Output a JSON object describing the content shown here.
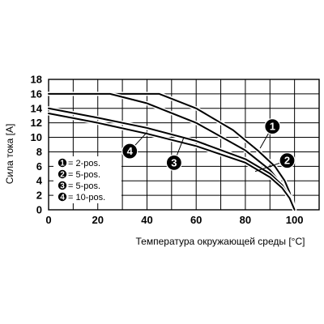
{
  "chart_data": {
    "type": "line",
    "title": "",
    "xlabel": "Температура окружающей среды [°C]",
    "ylabel": "Сила тока [A]",
    "xlim": [
      0,
      110
    ],
    "ylim": [
      0,
      18
    ],
    "x_ticks": [
      0,
      20,
      40,
      60,
      80,
      100
    ],
    "y_ticks": [
      0,
      2,
      4,
      6,
      8,
      10,
      12,
      14,
      16,
      18
    ],
    "x_tick_labels": [
      "0",
      "20",
      "40",
      "60",
      "80",
      "100"
    ],
    "y_tick_labels": [
      "0",
      "2",
      "4",
      "6",
      "8",
      "10",
      "12",
      "14",
      "16",
      "18"
    ],
    "grid": true,
    "legend_position": "inside-left",
    "series": [
      {
        "name": "2-pos.",
        "marker": "1",
        "color": "#000000",
        "x": [
          0,
          20,
          45,
          60,
          75,
          85,
          92,
          96,
          98,
          100
        ],
        "y": [
          16,
          16,
          16,
          14,
          11,
          8.2,
          6,
          4,
          2.4,
          0
        ]
      },
      {
        "name": "5-pos.",
        "marker": "2",
        "color": "#000000",
        "x": [
          0,
          25,
          40,
          60,
          80,
          90,
          95,
          98,
          100
        ],
        "y": [
          16,
          16,
          14.7,
          12,
          8.2,
          5.5,
          3.4,
          1.8,
          0
        ]
      },
      {
        "name": "5-pos.",
        "marker": "3",
        "color": "#000000",
        "x": [
          0,
          20,
          40,
          60,
          80,
          90,
          95,
          98,
          100
        ],
        "y": [
          14,
          12.7,
          11.3,
          9.5,
          7,
          5,
          3.4,
          1.8,
          0
        ]
      },
      {
        "name": "10-pos.",
        "marker": "4",
        "color": "#000000",
        "x": [
          0,
          20,
          40,
          60,
          80,
          90,
          95,
          98,
          100
        ],
        "y": [
          13.3,
          12,
          10.5,
          8.8,
          6.5,
          4.5,
          3,
          1.6,
          0
        ]
      }
    ],
    "legend": [
      {
        "marker": "1",
        "text": "= 2-pos."
      },
      {
        "marker": "2",
        "text": "= 5-pos."
      },
      {
        "marker": "3",
        "text": "= 5-pos."
      },
      {
        "marker": "4",
        "text": "= 10-pos."
      }
    ],
    "callouts": [
      {
        "label": "1",
        "anchor_x": 86,
        "anchor_y": 8.5,
        "x": 91,
        "y": 11.5
      },
      {
        "label": "2",
        "anchor_x": 84,
        "anchor_y": 5.3,
        "x": 97,
        "y": 6.8
      },
      {
        "label": "3",
        "anchor_x": 55,
        "anchor_y": 10,
        "x": 51,
        "y": 6.5
      },
      {
        "label": "4",
        "anchor_x": 40,
        "anchor_y": 10.7,
        "x": 33,
        "y": 8.1
      }
    ]
  }
}
